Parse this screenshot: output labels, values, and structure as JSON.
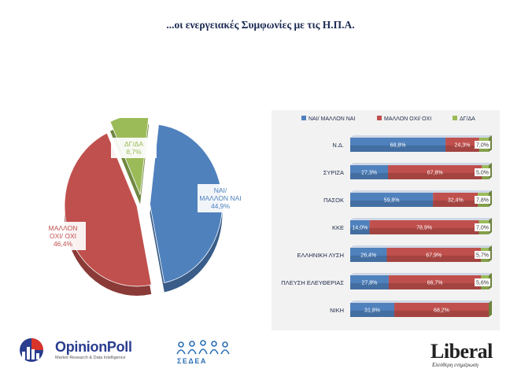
{
  "title": "...οι ενεργειακές Συμφωνίες με τις Η.Π.Α.",
  "chart_data": [
    {
      "type": "pie",
      "labels": [
        "ΝΑΙ/ ΜΑΛΛΟΝ ΝΑΙ",
        "ΜΑΛΛΟΝ ΟΧΙ/ ΟΧΙ",
        "ΔΓ/ΔΑ"
      ],
      "values": [
        44.9,
        46.4,
        8.7
      ],
      "value_labels": [
        "44,9%",
        "46,4%",
        "8,7%"
      ],
      "colors": [
        "#4f81bd",
        "#c0504d",
        "#9bbb59"
      ]
    },
    {
      "type": "bar",
      "stacked": true,
      "orientation": "horizontal",
      "categories": [
        "Ν.Δ.",
        "ΣΥΡΙΖΑ",
        "ΠΑΣΟΚ",
        "ΚΚΕ",
        "ΕΛΛΗΝΙΚΗ ΛΥΣΗ",
        "ΠΛΕΥΣΗ ΕΛΕΥΘΕΡΙΑΣ",
        "ΝΙΚΗ"
      ],
      "legend_position": "top",
      "series": [
        {
          "name": "ΝΑΙ/ ΜΑΛΛΟΝ ΝΑΙ",
          "color": "#4f81bd",
          "values": [
            68.8,
            27.3,
            59.8,
            14.0,
            26.4,
            27.8,
            31.8
          ],
          "labels": [
            "68,8%",
            "27,3%",
            "59,8%",
            "14,0%",
            "26,4%",
            "27,8%",
            "31,8%"
          ]
        },
        {
          "name": "ΜΑΛΛΟΝ ΟΧΙ/ ΟΧΙ",
          "color": "#c0504d",
          "values": [
            24.3,
            67.8,
            32.4,
            78.9,
            67.9,
            66.7,
            68.2
          ],
          "labels": [
            "24,3%",
            "67,8%",
            "32,4%",
            "78,9%",
            "67,9%",
            "66,7%",
            "68,2%"
          ]
        },
        {
          "name": "ΔΓ/ΔΑ",
          "color": "#9bbb59",
          "values": [
            7.0,
            5.0,
            7.8,
            7.0,
            5.7,
            5.6,
            0
          ],
          "labels": [
            "7,0%",
            "5,0%",
            "7,8%",
            "7,0%",
            "5,7%",
            "5,6%",
            ""
          ]
        }
      ]
    }
  ],
  "logos": {
    "opinionpoll": {
      "name": "OpinionPoll",
      "tagline": "Market Research & Data Intelligence"
    },
    "sedea": {
      "name": "ΣΕΔΕΑ"
    },
    "liberal": {
      "name": "Liberal",
      "tagline": "Ελεύθερη ενημέρωση"
    }
  }
}
